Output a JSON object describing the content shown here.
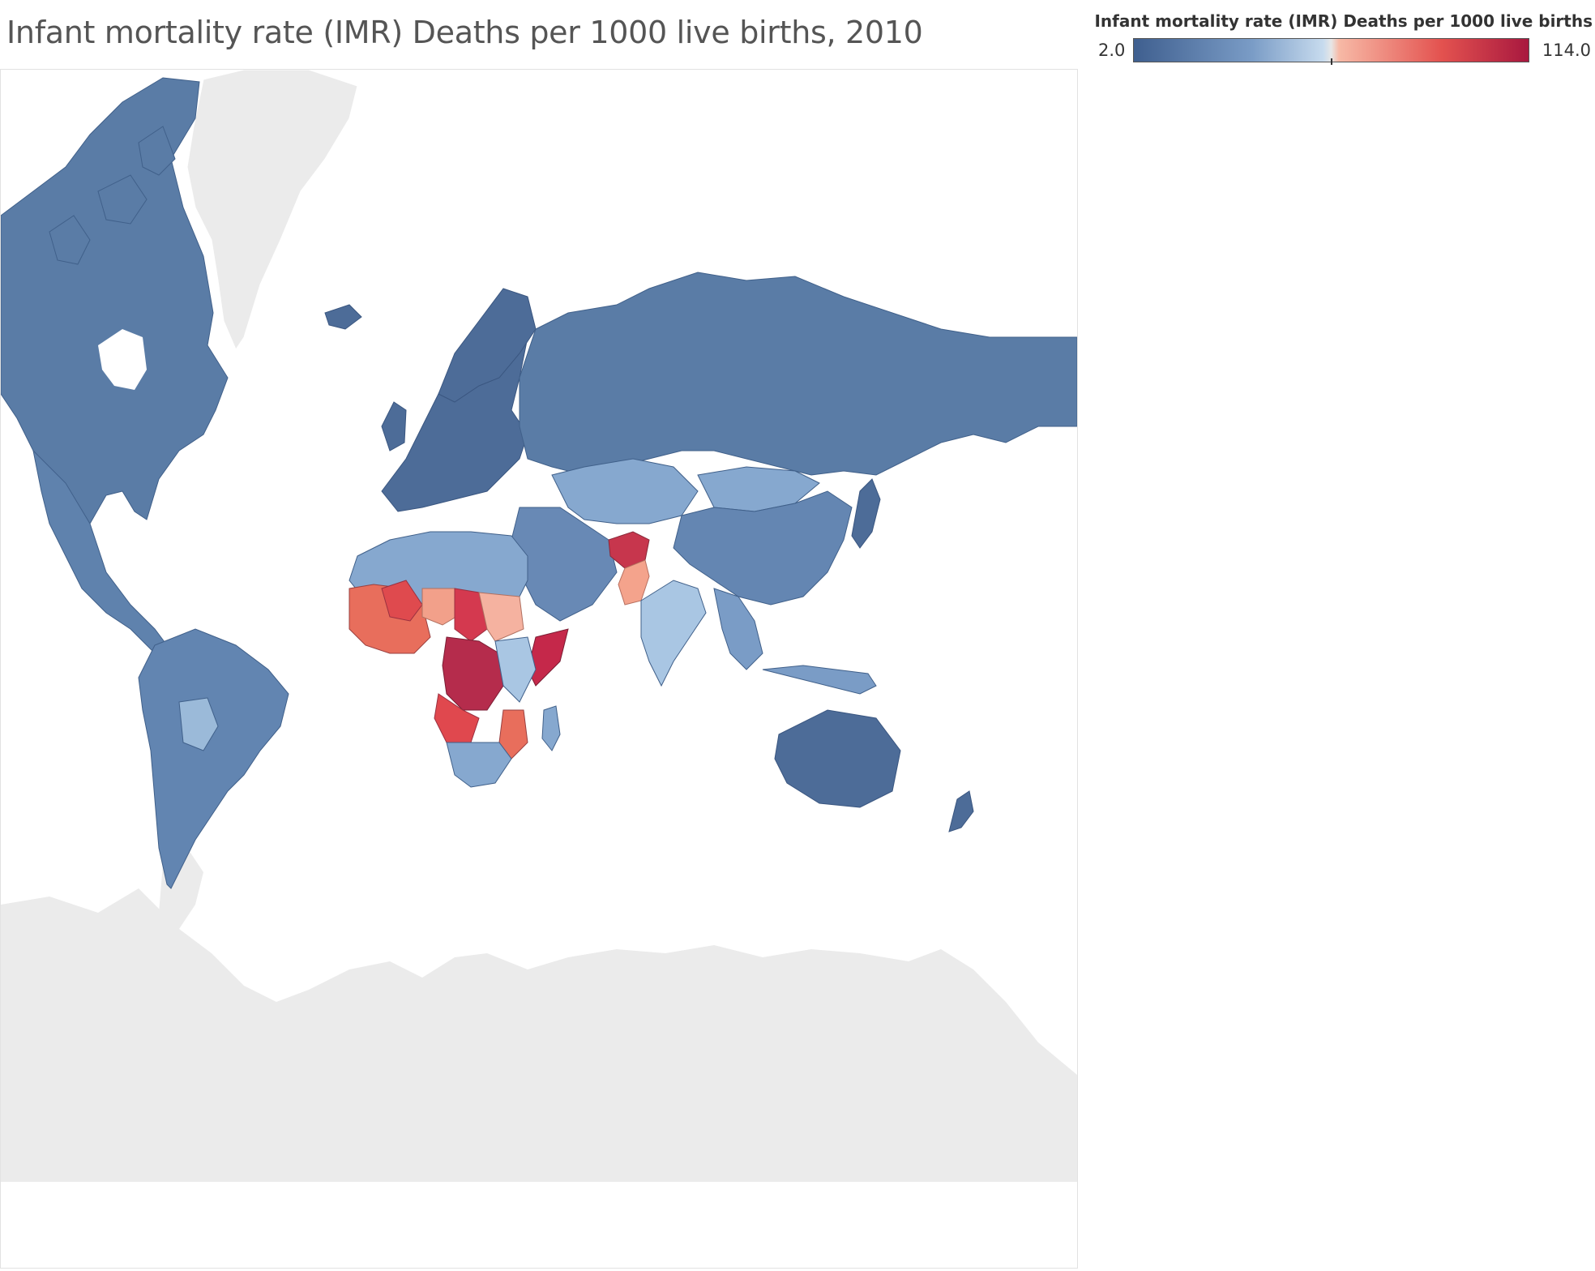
{
  "title": "Infant mortality rate (IMR)  Deaths per 1000 live births, 2010",
  "legend": {
    "title": "Infant mortality rate (IMR)  Deaths per 1000 live births",
    "min_label": "2.0",
    "max_label": "114.0",
    "min_value": 2.0,
    "max_value": 114.0,
    "scale": "diverging",
    "colors": {
      "low": "#3f5f8f",
      "low_mid": "#7a9cc6",
      "mid_low": "#c7dbee",
      "mid": "#e6e6e6",
      "mid_high": "#f7b9a6",
      "high_mid": "#e3524f",
      "high": "#a8183f"
    }
  },
  "map": {
    "projection": "mercator",
    "no_data_color": "#ebebeb",
    "regions": [
      {
        "name": "North America",
        "color": "#5a7ca6"
      },
      {
        "name": "Greenland",
        "color": "#ebebeb"
      },
      {
        "name": "Central America",
        "color": "#5f82ad"
      },
      {
        "name": "South America",
        "color": "#6285b1"
      },
      {
        "name": "Bolivia",
        "color": "#9bbad9"
      },
      {
        "name": "Europe",
        "color": "#4d6c98"
      },
      {
        "name": "Russia",
        "color": "#5a7ca6"
      },
      {
        "name": "Central Asia",
        "color": "#86a8cf"
      },
      {
        "name": "China",
        "color": "#6486b2"
      },
      {
        "name": "Mongolia",
        "color": "#86a8cf"
      },
      {
        "name": "India",
        "color": "#a9c6e3"
      },
      {
        "name": "Afghanistan",
        "color": "#c7364d"
      },
      {
        "name": "Pakistan",
        "color": "#f4a38c"
      },
      {
        "name": "Middle East",
        "color": "#6889b5"
      },
      {
        "name": "North Africa",
        "color": "#86a8cf"
      },
      {
        "name": "West Africa",
        "color": "#e86e5c"
      },
      {
        "name": "Mali",
        "color": "#df4a4e"
      },
      {
        "name": "Niger",
        "color": "#f2a08a"
      },
      {
        "name": "Chad",
        "color": "#d4394f"
      },
      {
        "name": "Sudan",
        "color": "#f5b2a0"
      },
      {
        "name": "Central Africa",
        "color": "#b52c4c"
      },
      {
        "name": "Angola",
        "color": "#e0484e"
      },
      {
        "name": "Somalia",
        "color": "#c5284a"
      },
      {
        "name": "East Africa",
        "color": "#a9c6e3"
      },
      {
        "name": "Mozambique",
        "color": "#e86e5c"
      },
      {
        "name": "Southern Africa",
        "color": "#86a8cf"
      },
      {
        "name": "Madagascar",
        "color": "#86a8cf"
      },
      {
        "name": "Southeast Asia",
        "color": "#7a9cc6"
      },
      {
        "name": "Australia",
        "color": "#4d6c98"
      },
      {
        "name": "New Zealand",
        "color": "#4d6c98"
      },
      {
        "name": "Japan",
        "color": "#4d6c98"
      },
      {
        "name": "Antarctica",
        "color": "#ebebeb"
      }
    ]
  }
}
